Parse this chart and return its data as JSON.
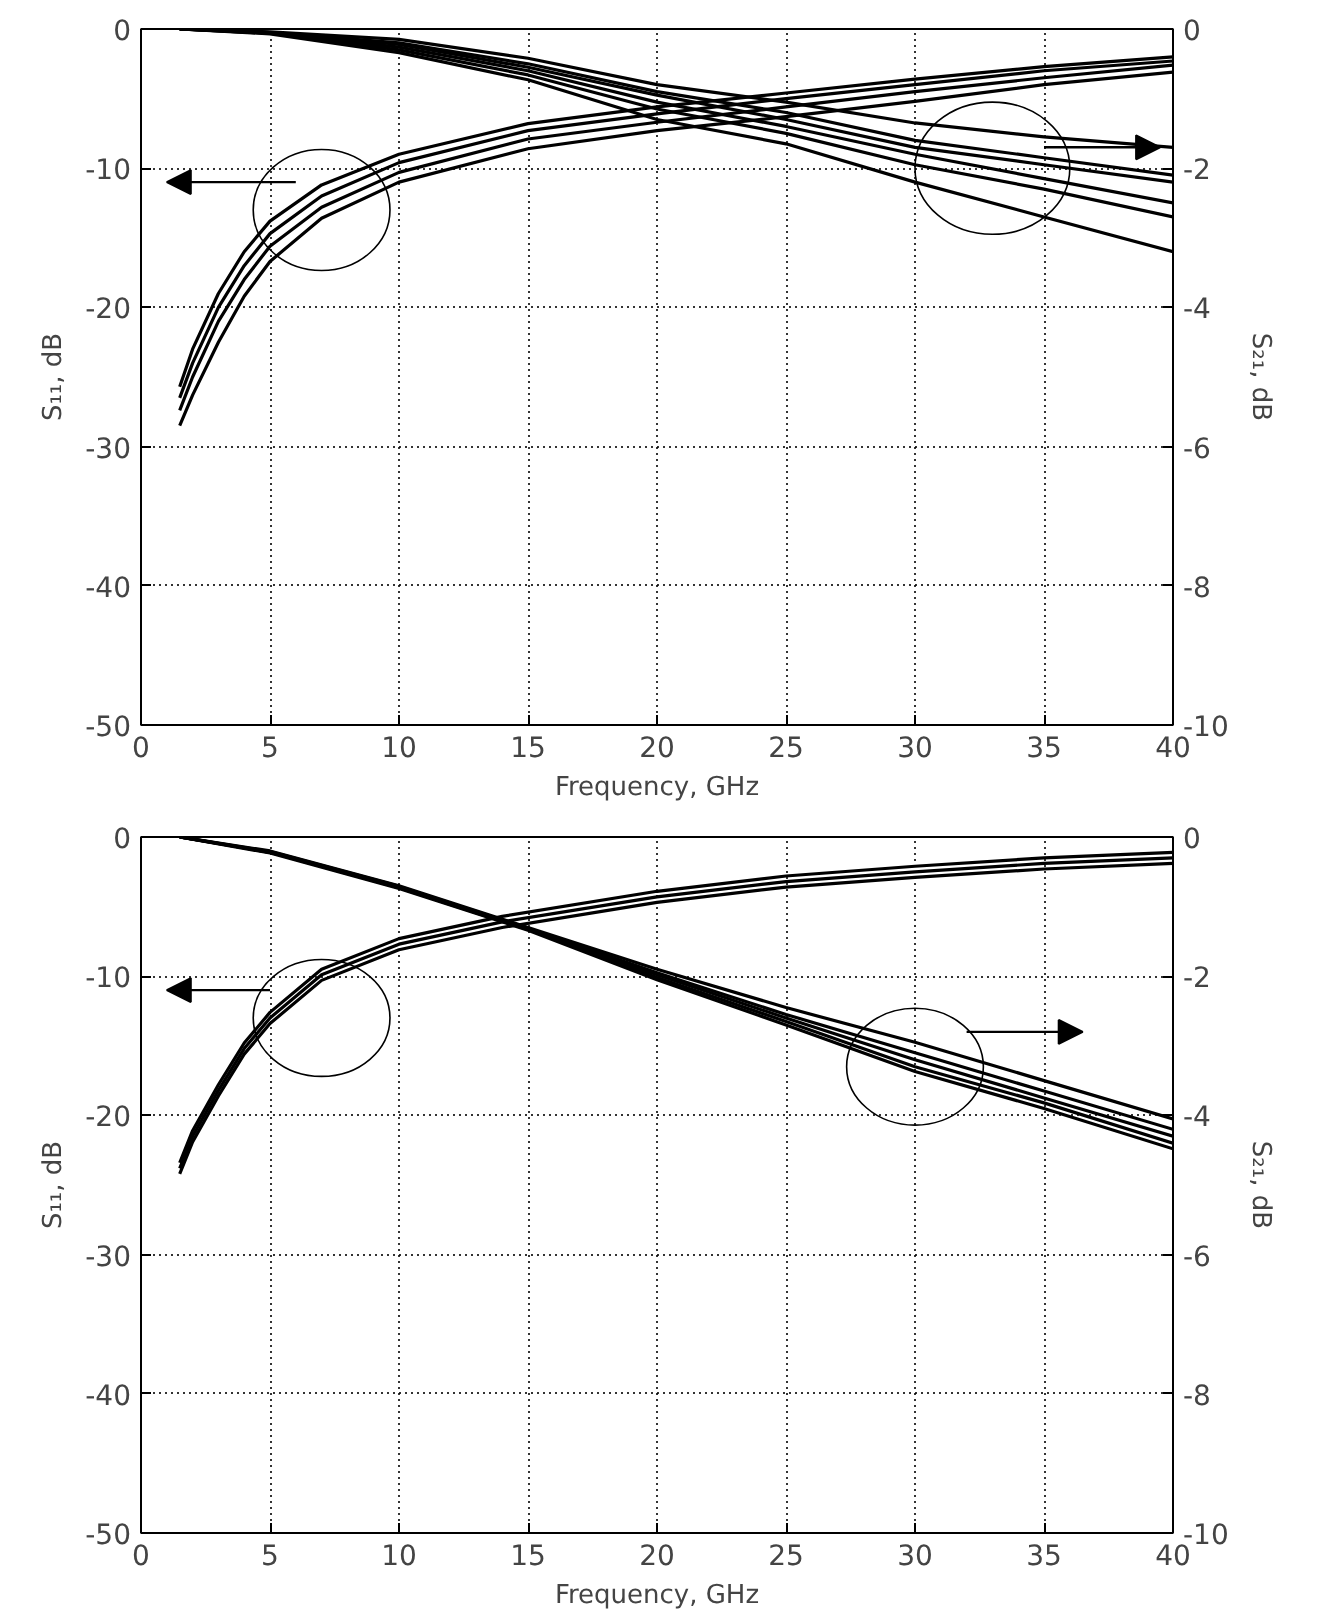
{
  "chart_data": [
    {
      "type": "line",
      "xlabel": "Frequency, GHz",
      "ylabel": "S₁₁, dB",
      "y2label": "S₂₁, dB",
      "xlim": [
        0,
        40
      ],
      "ylim": [
        -50,
        0
      ],
      "y2lim": [
        -10,
        0
      ],
      "xticks": [
        0,
        5,
        10,
        15,
        20,
        25,
        30,
        35,
        40
      ],
      "yticks": [
        -50,
        -40,
        -30,
        -20,
        -10,
        0
      ],
      "y2ticks": [
        -10,
        -8,
        -6,
        -4,
        -2,
        0
      ],
      "grid": true,
      "series": [
        {
          "color": "#000000",
          "x": [
            1.5,
            2,
            3,
            4,
            5,
            7,
            10,
            15,
            20,
            25,
            30,
            35,
            40
          ],
          "values": [
            -25.7,
            -23,
            -19,
            -16,
            -13.8,
            -11.2,
            -9,
            -6.8,
            -5.6,
            -4.6,
            -3.6,
            -2.7,
            -2.0
          ]
        },
        {
          "color": "#000000",
          "x": [
            1.5,
            2,
            3,
            4,
            5,
            7,
            10,
            15,
            20,
            25,
            30,
            35,
            40
          ],
          "values": [
            -26.5,
            -24,
            -20,
            -17,
            -14.7,
            -12,
            -9.6,
            -7.3,
            -6.1,
            -5.0,
            -4.0,
            -3.0,
            -2.3
          ]
        },
        {
          "color": "#000000",
          "x": [
            1.5,
            2,
            3,
            4,
            5,
            7,
            10,
            15,
            20,
            25,
            30,
            35,
            40
          ],
          "values": [
            -27.4,
            -25,
            -21,
            -18,
            -15.6,
            -12.8,
            -10.3,
            -7.9,
            -6.7,
            -5.6,
            -4.5,
            -3.5,
            -2.6
          ]
        },
        {
          "color": "#000000",
          "x": [
            1.5,
            2,
            3,
            4,
            5,
            7,
            10,
            15,
            20,
            25,
            30,
            35,
            40
          ],
          "values": [
            -28.5,
            -26.3,
            -22.5,
            -19.2,
            -16.7,
            -13.6,
            -11,
            -8.6,
            -7.3,
            -6.3,
            -5.2,
            -4.0,
            -3.1
          ]
        },
        {
          "color": "#000000",
          "axis": "y2",
          "x": [
            1.5,
            5,
            10,
            15,
            20,
            25,
            30,
            35,
            40
          ],
          "values": [
            0,
            -0.04,
            -0.15,
            -0.42,
            -0.8,
            -1.05,
            -1.35,
            -1.55,
            -1.7
          ]
        },
        {
          "color": "#000000",
          "axis": "y2",
          "x": [
            1.5,
            5,
            10,
            15,
            20,
            25,
            30,
            35,
            40
          ],
          "values": [
            0,
            -0.05,
            -0.2,
            -0.5,
            -0.9,
            -1.2,
            -1.6,
            -1.85,
            -2.1
          ]
        },
        {
          "color": "#000000",
          "axis": "y2",
          "x": [
            1.5,
            5,
            10,
            15,
            20,
            25,
            30,
            35,
            40
          ],
          "values": [
            0,
            -0.05,
            -0.22,
            -0.55,
            -0.95,
            -1.3,
            -1.7,
            -1.95,
            -2.2
          ]
        },
        {
          "color": "#000000",
          "axis": "y2",
          "x": [
            1.5,
            5,
            10,
            15,
            20,
            25,
            30,
            35,
            40
          ],
          "values": [
            0,
            -0.06,
            -0.26,
            -0.6,
            -1.05,
            -1.4,
            -1.8,
            -2.15,
            -2.5
          ]
        },
        {
          "color": "#000000",
          "axis": "y2",
          "x": [
            1.5,
            5,
            10,
            15,
            20,
            25,
            30,
            35,
            40
          ],
          "values": [
            0,
            -0.06,
            -0.3,
            -0.66,
            -1.15,
            -1.5,
            -1.95,
            -2.3,
            -2.7
          ]
        },
        {
          "color": "#000000",
          "axis": "y2",
          "x": [
            1.5,
            5,
            10,
            15,
            20,
            25,
            30,
            35,
            40
          ],
          "values": [
            0,
            -0.07,
            -0.34,
            -0.73,
            -1.3,
            -1.65,
            -2.2,
            -2.7,
            -3.2
          ]
        }
      ]
    },
    {
      "type": "line",
      "xlabel": "Frequency, GHz",
      "ylabel": "S₁₁, dB",
      "y2label": "S₂₁, dB",
      "xlim": [
        0,
        40
      ],
      "ylim": [
        -50,
        0
      ],
      "y2lim": [
        -10,
        0
      ],
      "xticks": [
        0,
        5,
        10,
        15,
        20,
        25,
        30,
        35,
        40
      ],
      "yticks": [
        -50,
        -40,
        -30,
        -20,
        -10,
        0
      ],
      "y2ticks": [
        -10,
        -8,
        -6,
        -4,
        -2,
        0
      ],
      "grid": true,
      "series": [
        {
          "color": "#000000",
          "x": [
            1.5,
            2,
            3,
            4,
            5,
            7,
            10,
            14,
            20,
            25,
            30,
            35,
            40
          ],
          "values": [
            -23.4,
            -21.1,
            -17.8,
            -14.8,
            -12.6,
            -9.5,
            -7.3,
            -5.7,
            -3.9,
            -2.8,
            -2.1,
            -1.5,
            -1.1
          ]
        },
        {
          "color": "#000000",
          "x": [
            1.5,
            2,
            3,
            4,
            5,
            7,
            10,
            14,
            20,
            25,
            30,
            35,
            40
          ],
          "values": [
            -23.8,
            -21.5,
            -18.2,
            -15.2,
            -13,
            -9.9,
            -7.7,
            -6.1,
            -4.3,
            -3.2,
            -2.5,
            -1.9,
            -1.5
          ]
        },
        {
          "color": "#000000",
          "x": [
            1.5,
            2,
            3,
            4,
            5,
            7,
            10,
            14,
            20,
            25,
            30,
            35,
            40
          ],
          "values": [
            -24.2,
            -21.9,
            -18.6,
            -15.6,
            -13.4,
            -10.3,
            -8.1,
            -6.5,
            -4.7,
            -3.6,
            -2.9,
            -2.3,
            -1.9
          ]
        },
        {
          "color": "#000000",
          "axis": "y2",
          "x": [
            1.5,
            5,
            10,
            15,
            20,
            25,
            30,
            35,
            40
          ],
          "values": [
            0,
            -0.2,
            -0.7,
            -1.3,
            -1.9,
            -2.45,
            -2.95,
            -3.5,
            -4.05
          ]
        },
        {
          "color": "#000000",
          "axis": "y2",
          "x": [
            1.5,
            5,
            10,
            15,
            20,
            25,
            30,
            35,
            40
          ],
          "values": [
            0,
            -0.21,
            -0.71,
            -1.31,
            -1.95,
            -2.55,
            -3.1,
            -3.65,
            -4.2
          ]
        },
        {
          "color": "#000000",
          "axis": "y2",
          "x": [
            1.5,
            5,
            10,
            15,
            20,
            25,
            30,
            35,
            40
          ],
          "values": [
            0,
            -0.22,
            -0.72,
            -1.32,
            -1.98,
            -2.6,
            -3.2,
            -3.75,
            -4.3
          ]
        },
        {
          "color": "#000000",
          "axis": "y2",
          "x": [
            1.5,
            5,
            10,
            15,
            20,
            25,
            30,
            35,
            40
          ],
          "values": [
            0,
            -0.22,
            -0.73,
            -1.33,
            -2.02,
            -2.65,
            -3.3,
            -3.82,
            -4.4
          ]
        },
        {
          "color": "#000000",
          "axis": "y2",
          "x": [
            1.5,
            5,
            10,
            15,
            20,
            25,
            30,
            35,
            40
          ],
          "values": [
            0,
            -0.23,
            -0.74,
            -1.34,
            -2.05,
            -2.7,
            -3.37,
            -3.9,
            -4.48
          ]
        }
      ]
    }
  ]
}
